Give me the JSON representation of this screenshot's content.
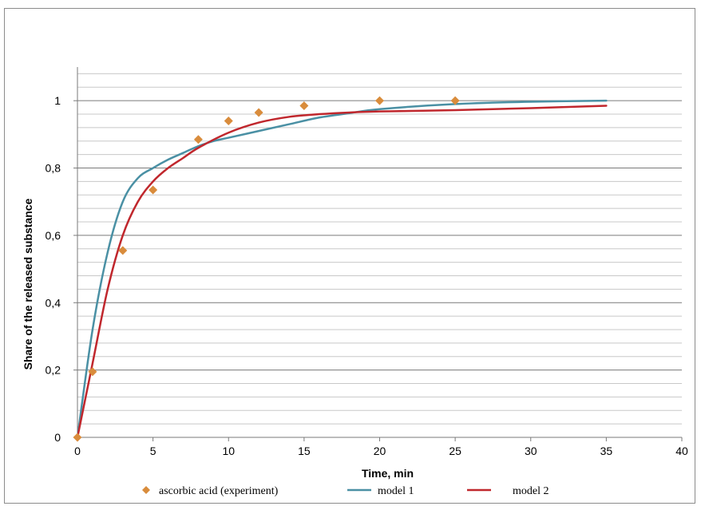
{
  "chart_data": {
    "type": "line",
    "title": "",
    "xlabel": "Time, min",
    "ylabel": "Share of the released substance",
    "xlim": [
      0,
      40
    ],
    "ylim": [
      0,
      1.1
    ],
    "x_ticks": [
      "0",
      "5",
      "10",
      "15",
      "20",
      "25",
      "30",
      "35",
      "40"
    ],
    "y_ticks": [
      "0",
      "0,2",
      "0,4",
      "0,6",
      "0,8",
      "1"
    ],
    "grid": true,
    "legend_position": "bottom",
    "series": [
      {
        "name": "ascorbic acid (experiment)",
        "kind": "scatter",
        "marker": "diamond",
        "color": "#d98c3c",
        "x": [
          0,
          1,
          3,
          5,
          8,
          10,
          12,
          15,
          20,
          25
        ],
        "y": [
          0,
          0.195,
          0.555,
          0.735,
          0.885,
          0.94,
          0.965,
          0.985,
          1.0,
          1.0
        ]
      },
      {
        "name": "model 1",
        "kind": "line",
        "color": "#4a90a4",
        "x": [
          0,
          1,
          2,
          3,
          4,
          5,
          6,
          7,
          8,
          9,
          10,
          12,
          14,
          16,
          18,
          20,
          25,
          30,
          35
        ],
        "y": [
          0,
          0.32,
          0.55,
          0.7,
          0.77,
          0.8,
          0.825,
          0.845,
          0.865,
          0.88,
          0.89,
          0.91,
          0.93,
          0.95,
          0.963,
          0.975,
          0.99,
          0.997,
          1.0
        ]
      },
      {
        "name": "model 2",
        "kind": "line",
        "color": "#c0272d",
        "x": [
          0,
          1,
          2,
          3,
          4,
          5,
          6,
          7,
          8,
          10,
          12,
          14,
          16,
          18,
          20,
          25,
          30,
          35
        ],
        "y": [
          0,
          0.22,
          0.44,
          0.6,
          0.7,
          0.76,
          0.8,
          0.83,
          0.86,
          0.905,
          0.935,
          0.952,
          0.96,
          0.965,
          0.968,
          0.972,
          0.978,
          0.985
        ]
      }
    ]
  }
}
